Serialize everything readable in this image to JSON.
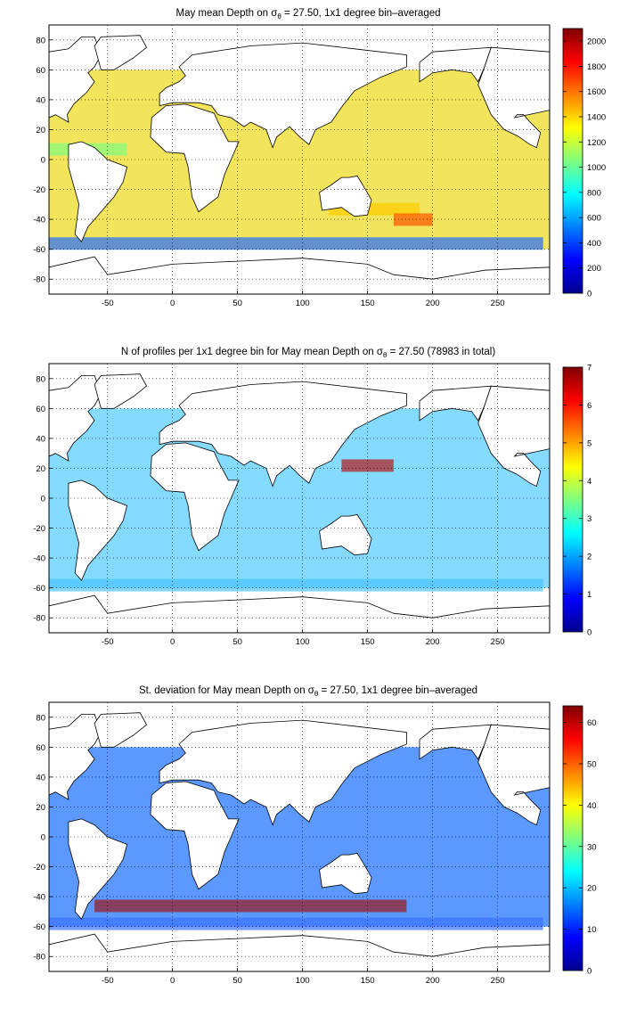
{
  "figure": {
    "x_ticks": [
      -50,
      0,
      50,
      100,
      150,
      200,
      250
    ],
    "y_ticks": [
      -80,
      -60,
      -40,
      -20,
      0,
      20,
      40,
      60,
      80
    ],
    "xlim": [
      -95,
      290
    ],
    "ylim": [
      -90,
      90
    ],
    "grid": "dotted",
    "colormap": "jet"
  },
  "panels": [
    {
      "id": "mean-depth",
      "title_pre": "May mean Depth on σ",
      "title_sub": "θ",
      "title_post": " = 27.50, 1x1 degree bin–averaged",
      "colorbar": {
        "min": 0,
        "max": 2100,
        "ticks": [
          0,
          200,
          400,
          600,
          800,
          1000,
          1200,
          1400,
          1600,
          1800,
          2000
        ]
      }
    },
    {
      "id": "profile-count",
      "title_pre": "N of profiles per 1x1 degree bin for May mean Depth on σ",
      "title_sub": "θ",
      "title_post": " = 27.50 (78983 in total)",
      "colorbar": {
        "min": 0,
        "max": 7,
        "ticks": [
          0,
          1,
          2,
          3,
          4,
          5,
          6,
          7
        ]
      }
    },
    {
      "id": "std-dev",
      "title_pre": "St. deviation for May mean Depth on σ",
      "title_sub": "θ",
      "title_post": " = 27.50, 1x1 degree bin–averaged",
      "colorbar": {
        "min": 0,
        "max": 64,
        "ticks": [
          0,
          10,
          20,
          30,
          40,
          50,
          60
        ]
      }
    }
  ]
}
